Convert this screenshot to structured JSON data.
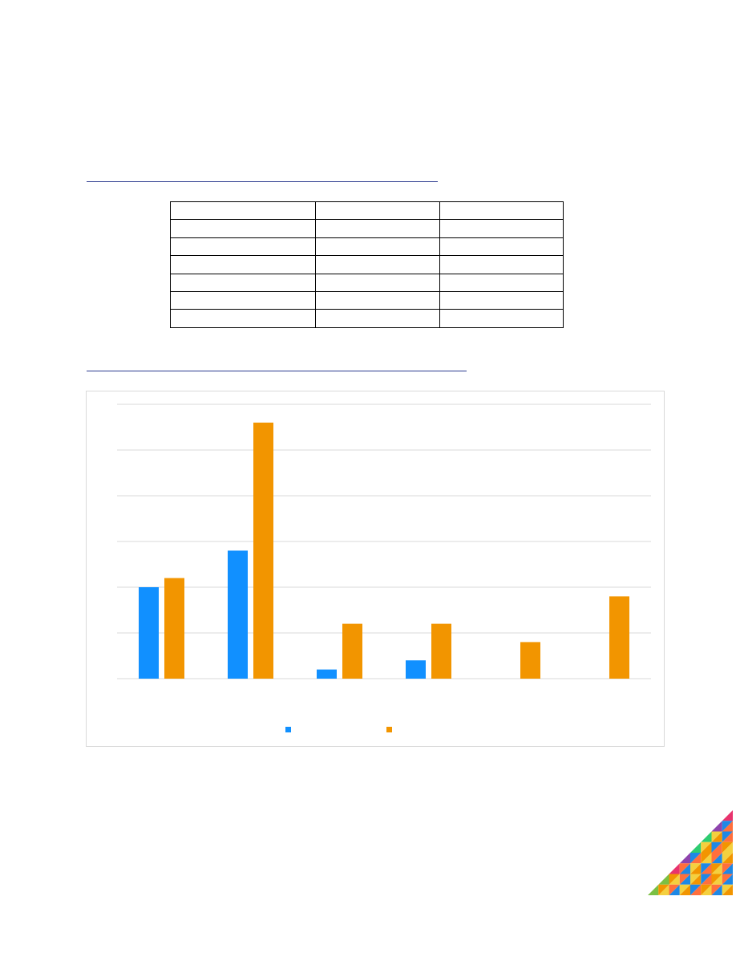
{
  "table": {
    "rows": [
      [
        "",
        "",
        ""
      ],
      [
        "",
        "",
        ""
      ],
      [
        "",
        "",
        ""
      ],
      [
        "",
        "",
        ""
      ],
      [
        "",
        "",
        ""
      ],
      [
        "",
        "",
        ""
      ],
      [
        "",
        "",
        ""
      ]
    ]
  },
  "chart_data": {
    "type": "bar",
    "categories": [
      "",
      "",
      "",
      "",
      "",
      ""
    ],
    "series": [
      {
        "color": "#1190ff",
        "values": [
          2.0,
          2.8,
          0.2,
          0.4,
          0,
          0
        ]
      },
      {
        "color": "#f29500",
        "values": [
          2.2,
          5.6,
          1.2,
          1.2,
          0.8,
          1.8
        ]
      }
    ],
    "ylim": [
      0,
      6
    ],
    "yticks": [
      0,
      1,
      2,
      3,
      4,
      5,
      6
    ],
    "grid": true,
    "legend": "bottom"
  },
  "colors": {
    "rule": "#2b3a8f",
    "grid": "#d9d9d9",
    "frame": "#d9d9d9"
  },
  "decoration": {
    "corner_art_colors": [
      "#e8336d",
      "#f29500",
      "#7bc043",
      "#1e88e5",
      "#8e44ad",
      "#f4d03f",
      "#2ecc71",
      "#ff6f3c"
    ]
  }
}
